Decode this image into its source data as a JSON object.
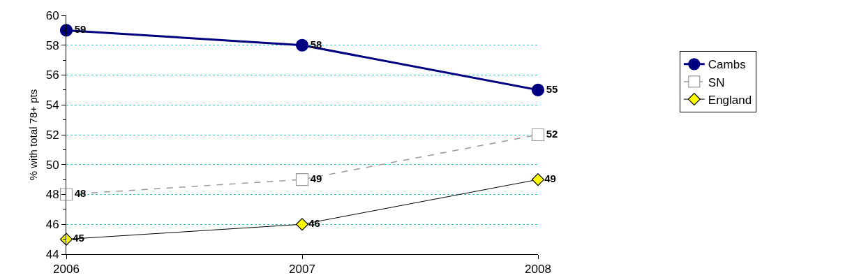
{
  "chart_data": {
    "type": "line",
    "ylabel": "% with total 78+ pts",
    "categories": [
      "2006",
      "2007",
      "2008"
    ],
    "series": [
      {
        "name": "Cambs",
        "color": "#000080",
        "values": [
          59,
          58,
          55
        ],
        "marker": "circle",
        "line_style": "solid"
      },
      {
        "name": "SN",
        "color": "#999999",
        "values": [
          48,
          49,
          52
        ],
        "marker": "square",
        "line_style": "dashed"
      },
      {
        "name": "England",
        "color": "#000000",
        "values": [
          45,
          46,
          49
        ],
        "marker": "diamond",
        "line_style": "solid"
      }
    ],
    "ylim": [
      44,
      60
    ],
    "yticks": [
      44,
      46,
      48,
      50,
      52,
      54,
      56,
      58,
      60
    ],
    "grid": "y",
    "legend": "right",
    "data_labels": true
  }
}
